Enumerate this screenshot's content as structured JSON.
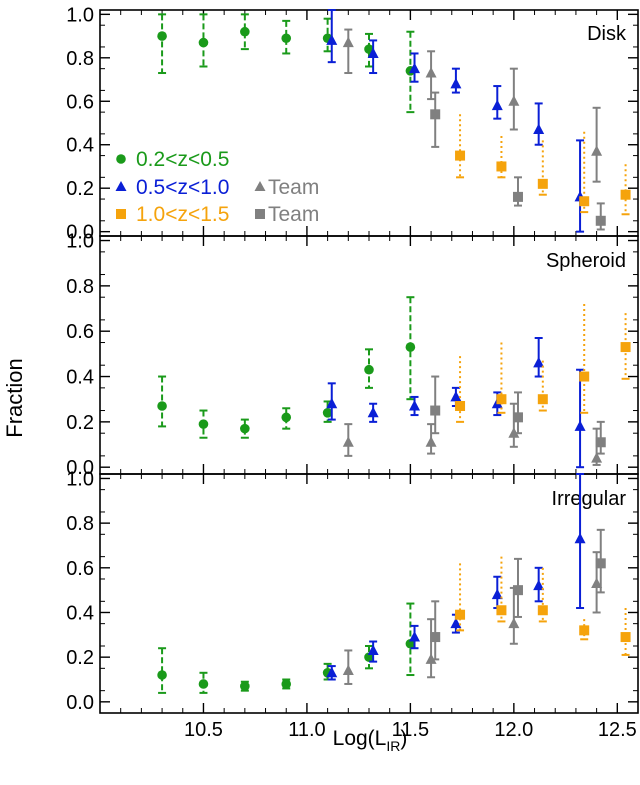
{
  "chart_data": {
    "type": "scatter",
    "figure": {
      "xlabel_main": "Log(L",
      "xlabel_sub": "IR",
      "xlabel_close": ")",
      "ylabel": "Fraction",
      "xlim": [
        10.0,
        12.6
      ],
      "x_ticks": [
        "10.5",
        "11.0",
        "11.5",
        "12.0",
        "12.5"
      ],
      "x_tick_values": [
        10.5,
        11.0,
        11.5,
        12.0,
        12.5
      ]
    },
    "legend": [
      {
        "marker": "circle",
        "label": "0.2<z<0.5",
        "color": "#1a9a1a"
      },
      {
        "marker": "triangle",
        "label": "0.5<z<1.0",
        "color": "#0a1fd6"
      },
      {
        "marker": "triangle",
        "label": "Team",
        "color": "#808080"
      },
      {
        "marker": "square",
        "label": "1.0<z<1.5",
        "color": "#f5a30c"
      },
      {
        "marker": "square",
        "label": "Team",
        "color": "#808080"
      }
    ],
    "colors": {
      "green": "#1a9a1a",
      "blue": "#0a1fd6",
      "grey": "#808080",
      "orange": "#f5a30c"
    },
    "panels": [
      {
        "title": "Disk",
        "ylim": [
          -0.02,
          1.02
        ],
        "y_ticks": [
          "0.0",
          "0.2",
          "0.4",
          "0.6",
          "0.8",
          "1.0"
        ],
        "y_tick_values": [
          0.0,
          0.2,
          0.4,
          0.6,
          0.8,
          1.0
        ],
        "series": [
          {
            "name": "0.2<z<0.5",
            "marker": "circle",
            "color": "green",
            "err_style": "dashed",
            "x": [
              10.3,
              10.5,
              10.7,
              10.9,
              11.1,
              11.3,
              11.5
            ],
            "y": [
              0.9,
              0.87,
              0.92,
              0.89,
              0.89,
              0.84,
              0.74
            ],
            "lo": [
              0.73,
              0.76,
              0.84,
              0.82,
              0.83,
              0.76,
              0.55
            ],
            "hi": [
              1.0,
              1.0,
              1.0,
              0.97,
              0.98,
              0.91,
              0.92
            ]
          },
          {
            "name": "0.5<z<1.0",
            "marker": "triangle",
            "color": "blue",
            "err_style": "solid",
            "x": [
              11.12,
              11.32,
              11.52,
              11.72,
              11.92,
              12.12,
              12.32
            ],
            "y": [
              0.88,
              0.82,
              0.75,
              0.68,
              0.58,
              0.47,
              0.16
            ],
            "lo": [
              0.78,
              0.73,
              0.69,
              0.64,
              0.52,
              0.4,
              0.0
            ],
            "hi": [
              1.02,
              0.88,
              0.82,
              0.75,
              0.67,
              0.59,
              0.42
            ]
          },
          {
            "name": "Team (triangle)",
            "marker": "triangle",
            "color": "grey",
            "err_style": "solid",
            "x": [
              11.2,
              11.6,
              12.0,
              12.4
            ],
            "y": [
              0.87,
              0.73,
              0.6,
              0.37
            ],
            "lo": [
              0.73,
              0.61,
              0.47,
              0.23
            ],
            "hi": [
              0.93,
              0.83,
              0.75,
              0.57
            ]
          },
          {
            "name": "1.0<z<1.5",
            "marker": "square",
            "color": "orange",
            "err_style": "dotted",
            "x": [
              11.74,
              11.94,
              12.14,
              12.34,
              12.54
            ],
            "y": [
              0.35,
              0.3,
              0.22,
              0.14,
              0.17
            ],
            "lo": [
              0.25,
              0.25,
              0.17,
              0.09,
              0.08
            ],
            "hi": [
              0.54,
              0.44,
              0.42,
              0.46,
              0.31
            ]
          },
          {
            "name": "Team (square)",
            "marker": "square",
            "color": "grey",
            "err_style": "solid",
            "x": [
              11.62,
              12.02,
              12.42
            ],
            "y": [
              0.54,
              0.16,
              0.05
            ],
            "lo": [
              0.39,
              0.12,
              0.01
            ],
            "hi": [
              0.64,
              0.25,
              0.13
            ]
          }
        ]
      },
      {
        "title": "Spheroid",
        "ylim": [
          -0.03,
          1.02
        ],
        "y_ticks": [
          "0.0",
          "0.2",
          "0.4",
          "0.6",
          "0.8",
          "1.0"
        ],
        "y_tick_values": [
          0.0,
          0.2,
          0.4,
          0.6,
          0.8,
          1.0
        ],
        "series": [
          {
            "name": "0.2<z<0.5",
            "marker": "circle",
            "color": "green",
            "err_style": "dashed",
            "x": [
              10.3,
              10.5,
              10.7,
              10.9,
              11.1,
              11.3,
              11.5
            ],
            "y": [
              0.27,
              0.19,
              0.17,
              0.22,
              0.24,
              0.43,
              0.53
            ],
            "lo": [
              0.18,
              0.13,
              0.13,
              0.17,
              0.2,
              0.35,
              0.3
            ],
            "hi": [
              0.4,
              0.25,
              0.21,
              0.26,
              0.29,
              0.52,
              0.75
            ]
          },
          {
            "name": "0.5<z<1.0",
            "marker": "triangle",
            "color": "blue",
            "err_style": "solid",
            "x": [
              11.12,
              11.32,
              11.52,
              11.72,
              11.92,
              12.12,
              12.32
            ],
            "y": [
              0.28,
              0.24,
              0.27,
              0.31,
              0.28,
              0.46,
              0.18
            ],
            "lo": [
              0.21,
              0.2,
              0.23,
              0.27,
              0.23,
              0.4,
              0.0
            ],
            "hi": [
              0.37,
              0.28,
              0.31,
              0.35,
              0.33,
              0.57,
              0.43
            ]
          },
          {
            "name": "Team (triangle)",
            "marker": "triangle",
            "color": "grey",
            "err_style": "solid",
            "x": [
              11.2,
              11.6,
              12.0,
              12.4
            ],
            "y": [
              0.11,
              0.11,
              0.15,
              0.04
            ],
            "lo": [
              0.05,
              0.06,
              0.09,
              0.01
            ],
            "hi": [
              0.19,
              0.19,
              0.28,
              0.17
            ]
          },
          {
            "name": "1.0<z<1.5",
            "marker": "square",
            "color": "orange",
            "err_style": "dotted",
            "x": [
              11.74,
              11.94,
              12.14,
              12.34,
              12.54
            ],
            "y": [
              0.27,
              0.3,
              0.3,
              0.4,
              0.53
            ],
            "lo": [
              0.2,
              0.24,
              0.25,
              0.24,
              0.39
            ],
            "hi": [
              0.49,
              0.55,
              0.47,
              0.72,
              0.68
            ]
          },
          {
            "name": "Team (square)",
            "marker": "square",
            "color": "grey",
            "err_style": "solid",
            "x": [
              11.62,
              12.02,
              12.42
            ],
            "y": [
              0.25,
              0.22,
              0.11
            ],
            "lo": [
              0.15,
              0.15,
              0.06
            ],
            "hi": [
              0.4,
              0.33,
              0.2
            ]
          }
        ]
      },
      {
        "title": "Irregular",
        "ylim": [
          -0.05,
          1.02
        ],
        "y_ticks": [
          "0.0",
          "0.2",
          "0.4",
          "0.6",
          "0.8",
          "1.0"
        ],
        "y_tick_values": [
          0.0,
          0.2,
          0.4,
          0.6,
          0.8,
          1.0
        ],
        "series": [
          {
            "name": "0.2<z<0.5",
            "marker": "circle",
            "color": "green",
            "err_style": "dashed",
            "x": [
              10.3,
              10.5,
              10.7,
              10.9,
              11.1,
              11.3,
              11.5
            ],
            "y": [
              0.12,
              0.08,
              0.07,
              0.08,
              0.13,
              0.2,
              0.26
            ],
            "lo": [
              0.04,
              0.04,
              0.05,
              0.06,
              0.1,
              0.15,
              0.12
            ],
            "hi": [
              0.24,
              0.13,
              0.09,
              0.1,
              0.17,
              0.25,
              0.44
            ]
          },
          {
            "name": "0.5<z<1.0",
            "marker": "triangle",
            "color": "blue",
            "err_style": "solid",
            "x": [
              11.12,
              11.32,
              11.52,
              11.72,
              11.92,
              12.12,
              12.32
            ],
            "y": [
              0.13,
              0.23,
              0.29,
              0.35,
              0.48,
              0.52,
              0.73
            ],
            "lo": [
              0.1,
              0.18,
              0.24,
              0.31,
              0.42,
              0.45,
              0.42
            ],
            "hi": [
              0.16,
              0.27,
              0.34,
              0.39,
              0.56,
              0.6,
              1.02
            ]
          },
          {
            "name": "Team (triangle)",
            "marker": "triangle",
            "color": "grey",
            "err_style": "solid",
            "x": [
              11.2,
              11.6,
              12.0,
              12.4
            ],
            "y": [
              0.14,
              0.19,
              0.35,
              0.53
            ],
            "lo": [
              0.08,
              0.11,
              0.26,
              0.4
            ],
            "hi": [
              0.23,
              0.37,
              0.51,
              0.67
            ]
          },
          {
            "name": "1.0<z<1.5",
            "marker": "square",
            "color": "orange",
            "err_style": "dotted",
            "x": [
              11.74,
              11.94,
              12.14,
              12.34,
              12.54
            ],
            "y": [
              0.39,
              0.41,
              0.41,
              0.32,
              0.29
            ],
            "lo": [
              0.32,
              0.36,
              0.36,
              0.28,
              0.21
            ],
            "hi": [
              0.62,
              0.65,
              0.6,
              0.37,
              0.42
            ]
          },
          {
            "name": "Team (square)",
            "marker": "square",
            "color": "grey",
            "err_style": "solid",
            "x": [
              11.62,
              12.02,
              12.42
            ],
            "y": [
              0.29,
              0.5,
              0.62
            ],
            "lo": [
              0.19,
              0.38,
              0.49
            ],
            "hi": [
              0.45,
              0.64,
              0.77
            ]
          }
        ]
      }
    ]
  }
}
